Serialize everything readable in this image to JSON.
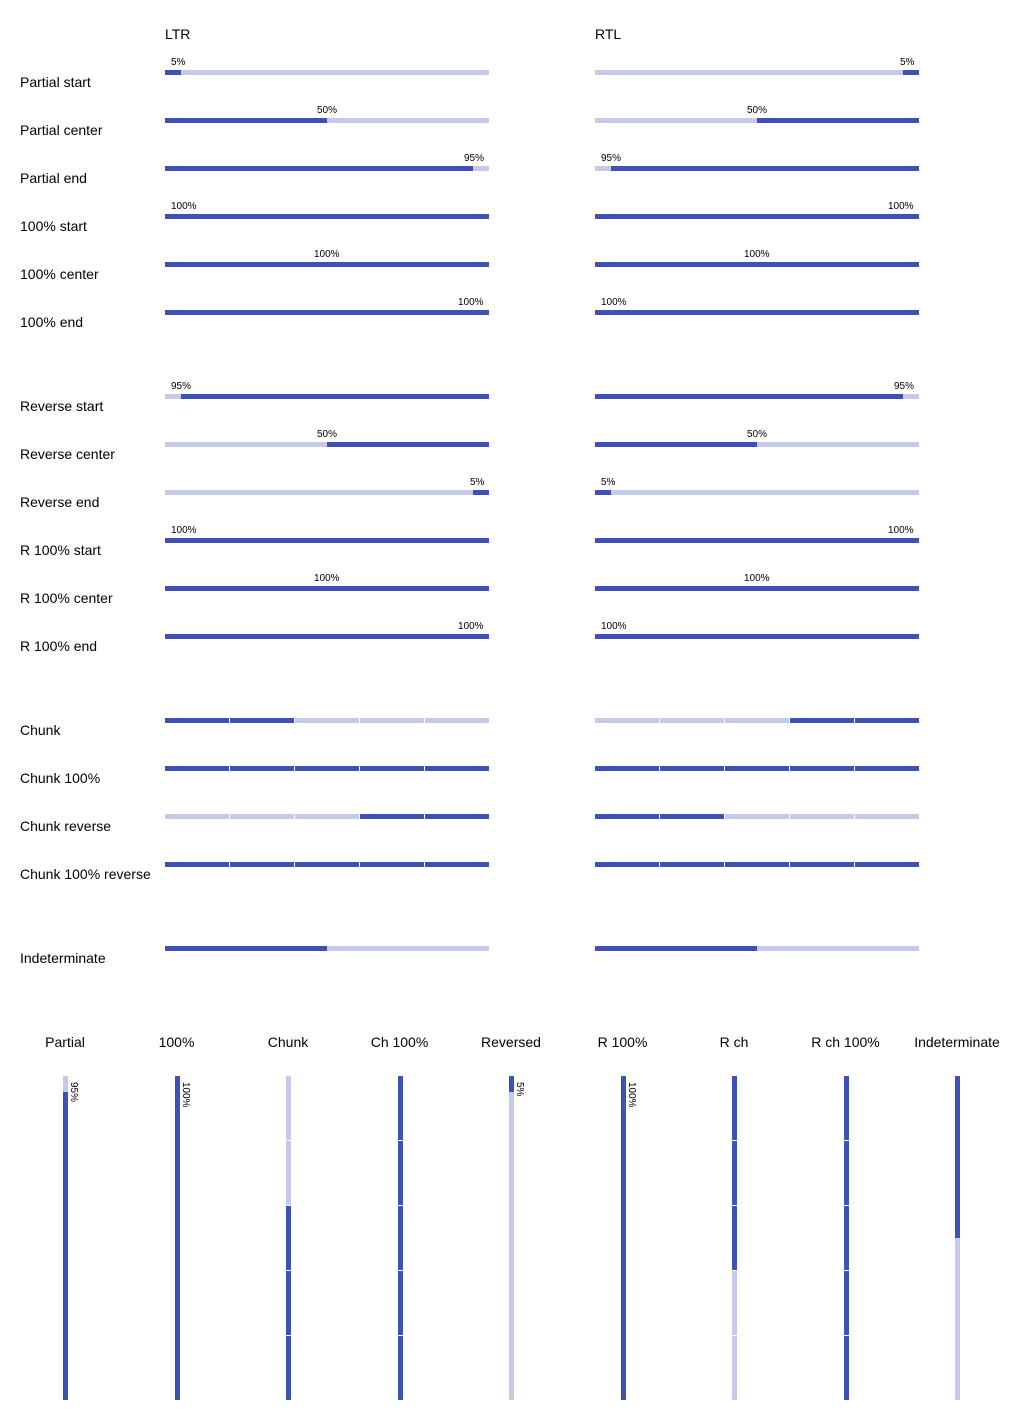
{
  "colors": {
    "accent": "#3f51b5",
    "track": "#c5cae9"
  },
  "headers": {
    "ltr": "LTR",
    "rtl": "RTL"
  },
  "rows": [
    {
      "label": "Partial start",
      "kind": "bar",
      "value": 5,
      "reverse": false,
      "text": "5%",
      "textpos": "start"
    },
    {
      "label": "Partial center",
      "kind": "bar",
      "value": 50,
      "reverse": false,
      "text": "50%",
      "textpos": "center"
    },
    {
      "label": "Partial end",
      "kind": "bar",
      "value": 95,
      "reverse": false,
      "text": "95%",
      "textpos": "end"
    },
    {
      "label": "100% start",
      "kind": "bar",
      "value": 100,
      "reverse": false,
      "text": "100%",
      "textpos": "start"
    },
    {
      "label": "100% center",
      "kind": "bar",
      "value": 100,
      "reverse": false,
      "text": "100%",
      "textpos": "center"
    },
    {
      "label": "100% end",
      "kind": "bar",
      "value": 100,
      "reverse": false,
      "text": "100%",
      "textpos": "end"
    },
    {
      "label": "Reverse start",
      "kind": "bar",
      "value": 95,
      "reverse": true,
      "text": "95%",
      "textpos": "start"
    },
    {
      "label": "Reverse center",
      "kind": "bar",
      "value": 50,
      "reverse": true,
      "text": "50%",
      "textpos": "center"
    },
    {
      "label": "Reverse end",
      "kind": "bar",
      "value": 5,
      "reverse": true,
      "text": "5%",
      "textpos": "end"
    },
    {
      "label": "R 100% start",
      "kind": "bar",
      "value": 100,
      "reverse": true,
      "text": "100%",
      "textpos": "start"
    },
    {
      "label": "R 100% center",
      "kind": "bar",
      "value": 100,
      "reverse": true,
      "text": "100%",
      "textpos": "center"
    },
    {
      "label": "R 100% end",
      "kind": "bar",
      "value": 100,
      "reverse": true,
      "text": "100%",
      "textpos": "end"
    },
    {
      "label": "Chunk",
      "kind": "chunk",
      "chunks": 5,
      "filled": 2,
      "reverse": false
    },
    {
      "label": "Chunk 100%",
      "kind": "chunk",
      "chunks": 5,
      "filled": 5,
      "reverse": false
    },
    {
      "label": "Chunk reverse",
      "kind": "chunk",
      "chunks": 5,
      "filled": 2,
      "reverse": true
    },
    {
      "label": "Chunk 100% reverse",
      "kind": "chunk",
      "chunks": 5,
      "filled": 5,
      "reverse": true
    },
    {
      "label": "Indeterminate",
      "kind": "indeterminate",
      "value": 50
    }
  ],
  "vertical": [
    {
      "label": "Partial",
      "kind": "bar",
      "value": 95,
      "reverse": false,
      "text": "95%"
    },
    {
      "label": "100%",
      "kind": "bar",
      "value": 100,
      "reverse": false,
      "text": "100%"
    },
    {
      "label": "Chunk",
      "kind": "chunk",
      "chunks": 5,
      "filled": 3,
      "reverse": false
    },
    {
      "label": "Ch 100%",
      "kind": "chunk",
      "chunks": 5,
      "filled": 5,
      "reverse": false
    },
    {
      "label": "Reversed",
      "kind": "bar",
      "value": 5,
      "reverse": true,
      "text": "5%"
    },
    {
      "label": "R 100%",
      "kind": "bar",
      "value": 100,
      "reverse": true,
      "text": "100%"
    },
    {
      "label": "R ch",
      "kind": "chunk",
      "chunks": 5,
      "filled": 3,
      "reverse": true
    },
    {
      "label": "R ch 100%",
      "kind": "chunk",
      "chunks": 5,
      "filled": 5,
      "reverse": true
    },
    {
      "label": "Indeterminate",
      "kind": "indeterminate",
      "value": 50
    }
  ]
}
